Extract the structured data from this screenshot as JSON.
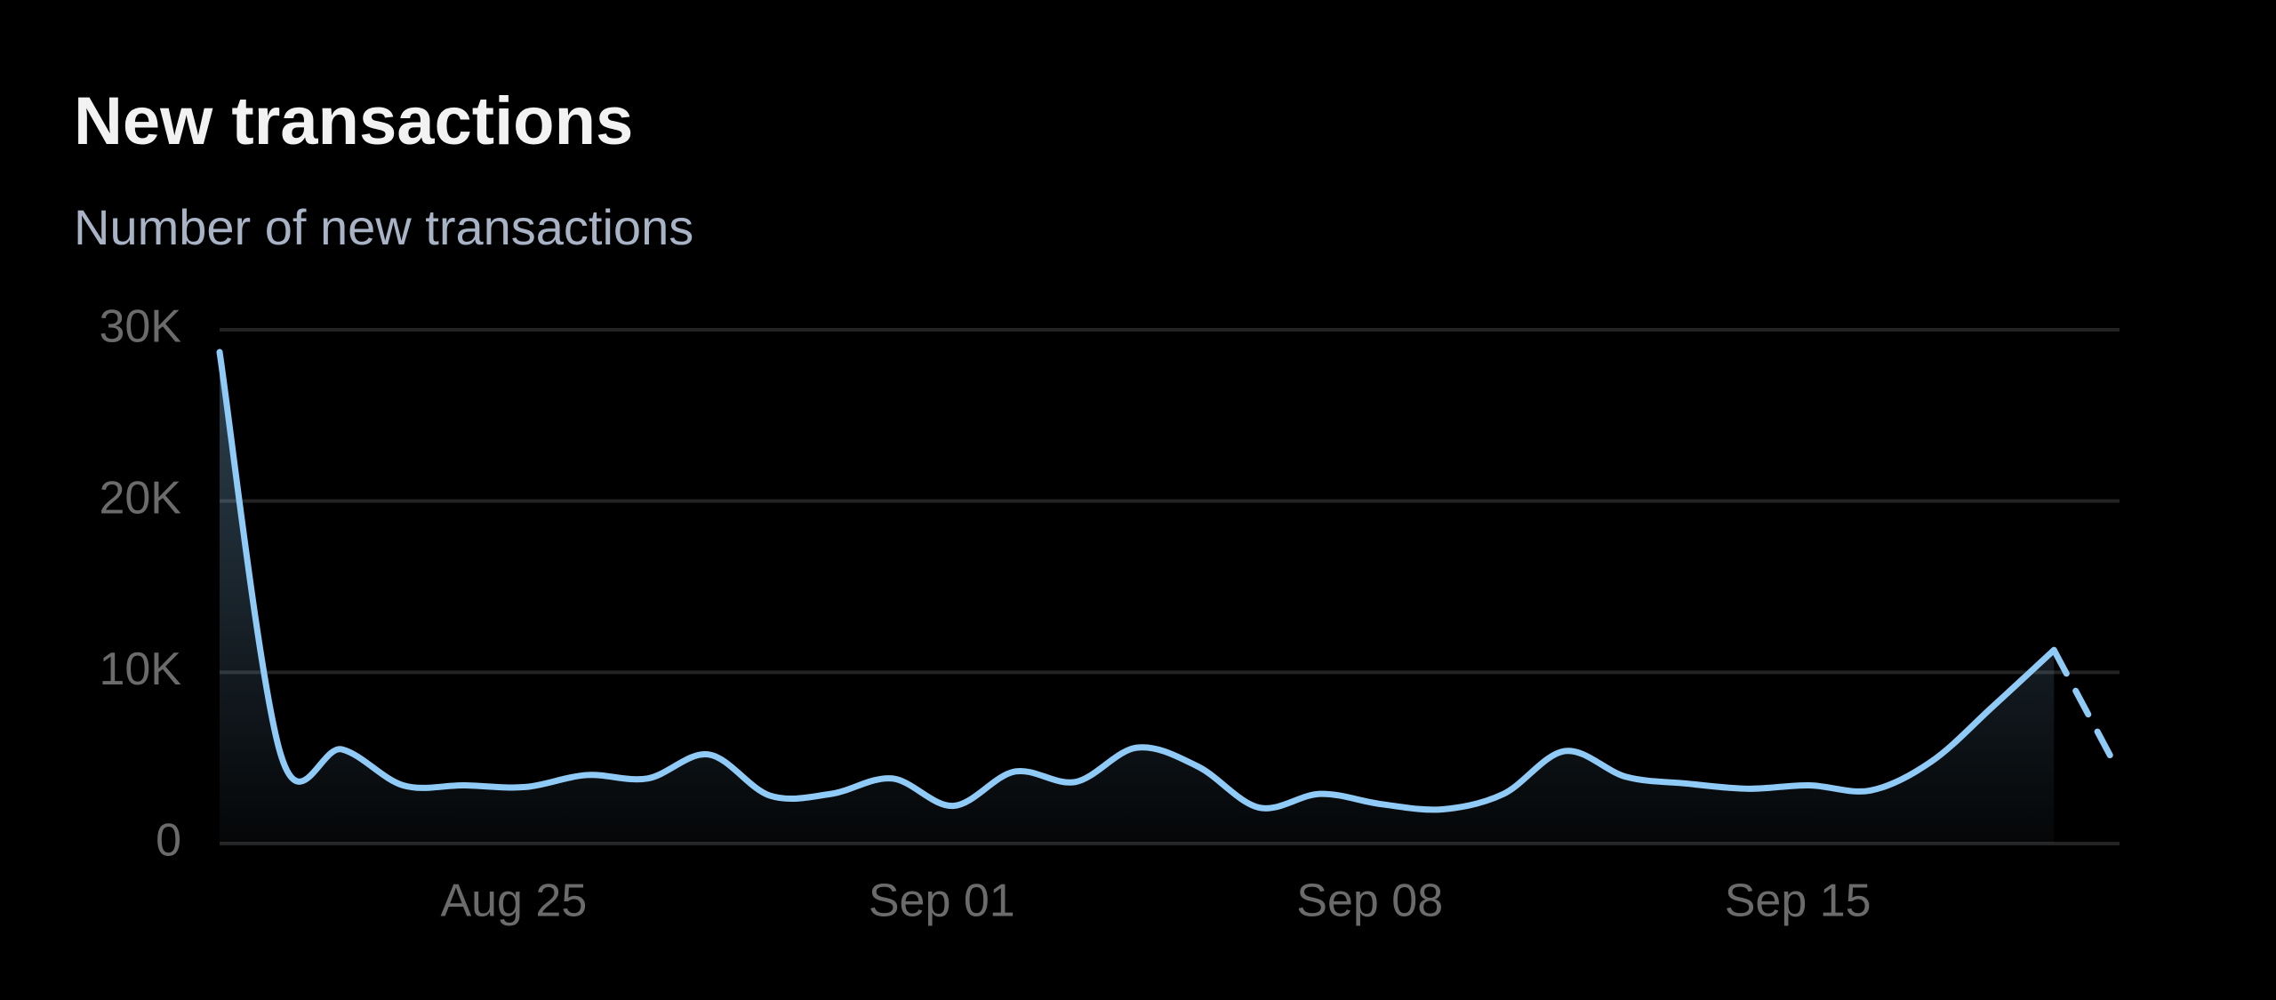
{
  "chart_data": {
    "type": "line",
    "title": "New transactions",
    "subtitle": "Number of new transactions",
    "categories": [
      null,
      null,
      null,
      null,
      null,
      "Aug 25",
      null,
      null,
      null,
      null,
      null,
      null,
      "Sep 01",
      null,
      null,
      null,
      null,
      null,
      null,
      "Sep 08",
      null,
      null,
      null,
      null,
      null,
      null,
      "Sep 15",
      null,
      null,
      null,
      null,
      null
    ],
    "series": [
      {
        "color": "#90caf6",
        "values": [
          28700,
          5200,
          5500,
          3400,
          3400,
          3300,
          4000,
          3800,
          5200,
          2800,
          2900,
          3800,
          2200,
          4200,
          3600,
          5600,
          4500,
          2100,
          2900,
          2300,
          2000,
          2900,
          5400,
          3900,
          3500,
          3200,
          3400,
          3100,
          4800,
          8000,
          11300,
          4600
        ]
      }
    ],
    "last_segment_style": "dashed",
    "ylim": [
      0,
      30000
    ],
    "yticks": [
      0,
      {
        "value": 10000,
        "label": "10K"
      },
      {
        "value": 20000,
        "label": "20K"
      },
      {
        "value": 30000,
        "label": "30K"
      }
    ],
    "grid": true
  }
}
